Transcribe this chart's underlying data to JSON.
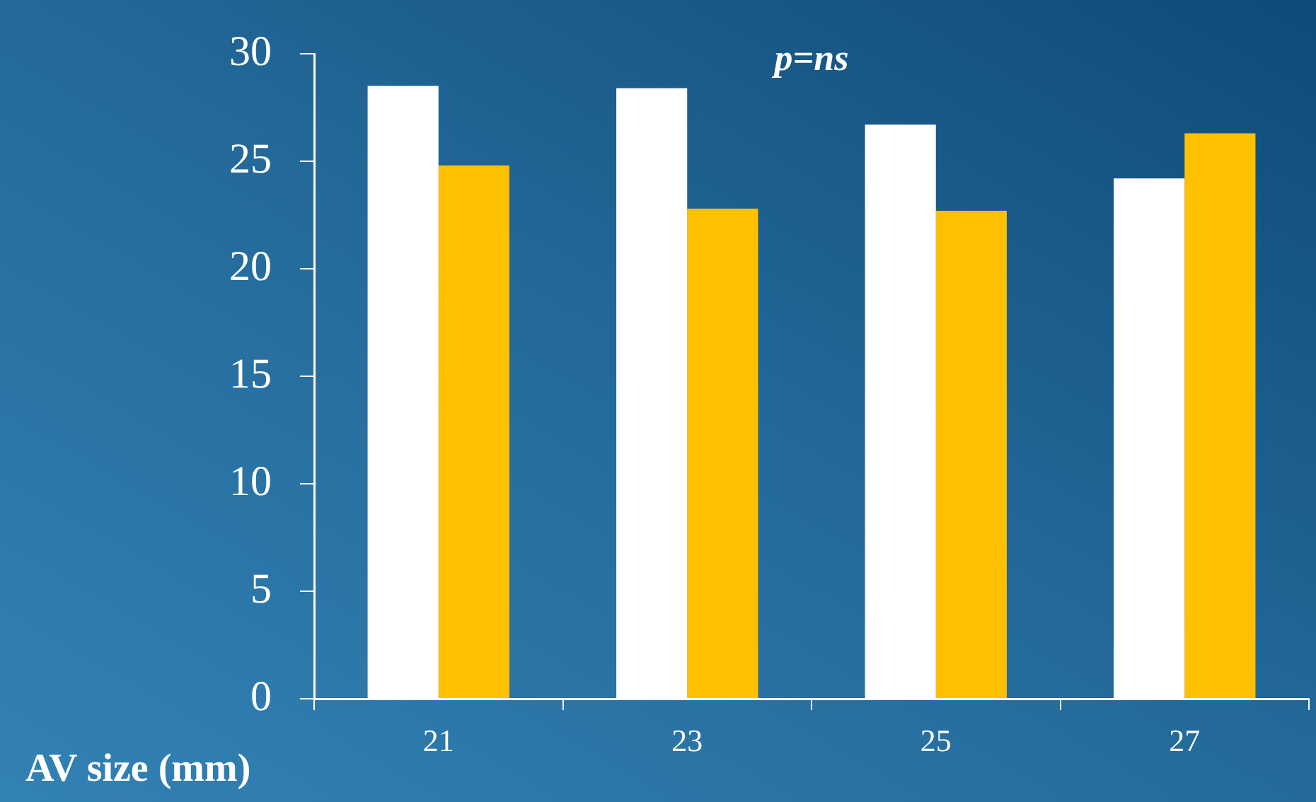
{
  "chart_data": {
    "type": "bar",
    "xlabel": "AV size (mm)",
    "annotations": [
      "p=ns"
    ],
    "categories": [
      "21",
      "23",
      "25",
      "27"
    ],
    "series": [
      {
        "color": "#ffffff",
        "values": [
          28.5,
          28.4,
          26.7,
          24.2
        ]
      },
      {
        "color": "#ffc000",
        "values": [
          24.8,
          22.8,
          22.7,
          26.3
        ]
      }
    ],
    "ylim": [
      0,
      30
    ],
    "yticks": [
      0,
      5,
      10,
      15,
      20,
      25,
      30
    ],
    "grid": false,
    "legend": false
  }
}
